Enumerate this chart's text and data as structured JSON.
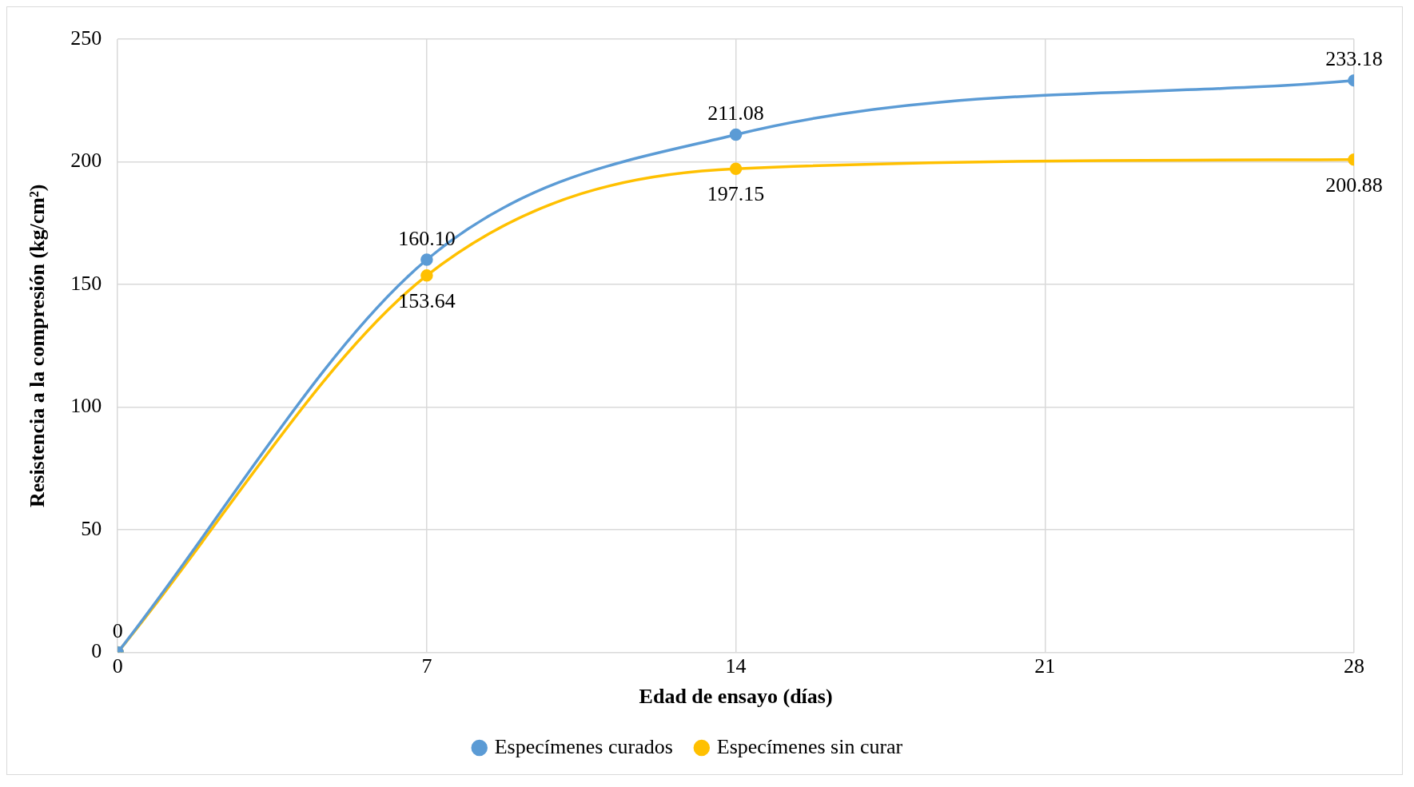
{
  "chart_data": {
    "type": "line",
    "x": [
      0,
      7,
      14,
      28
    ],
    "xlabel": "Edad de ensayo (días)",
    "ylabel": "Resistencia a la compresión (kg/cm²)",
    "xlim": [
      0,
      28
    ],
    "xticks": [
      0,
      7,
      14,
      21,
      28
    ],
    "ylim": [
      0,
      250
    ],
    "yticks": [
      0,
      50,
      100,
      150,
      200,
      250
    ],
    "grid": true,
    "legend": "bottom",
    "marker": "circle",
    "line_style": "solid",
    "series": [
      {
        "name": "Especímenes curados",
        "color": "#5b9bd5",
        "values": [
          0,
          160.1,
          211.08,
          233.18
        ],
        "value_labels": [
          "0",
          "160.10",
          "211.08",
          "233.18"
        ]
      },
      {
        "name": "Especímenes sin curar",
        "color": "#ffc000",
        "values": [
          0,
          153.64,
          197.15,
          200.88
        ],
        "value_labels": [
          null,
          "153.64",
          "197.15",
          "200.88"
        ]
      }
    ]
  }
}
